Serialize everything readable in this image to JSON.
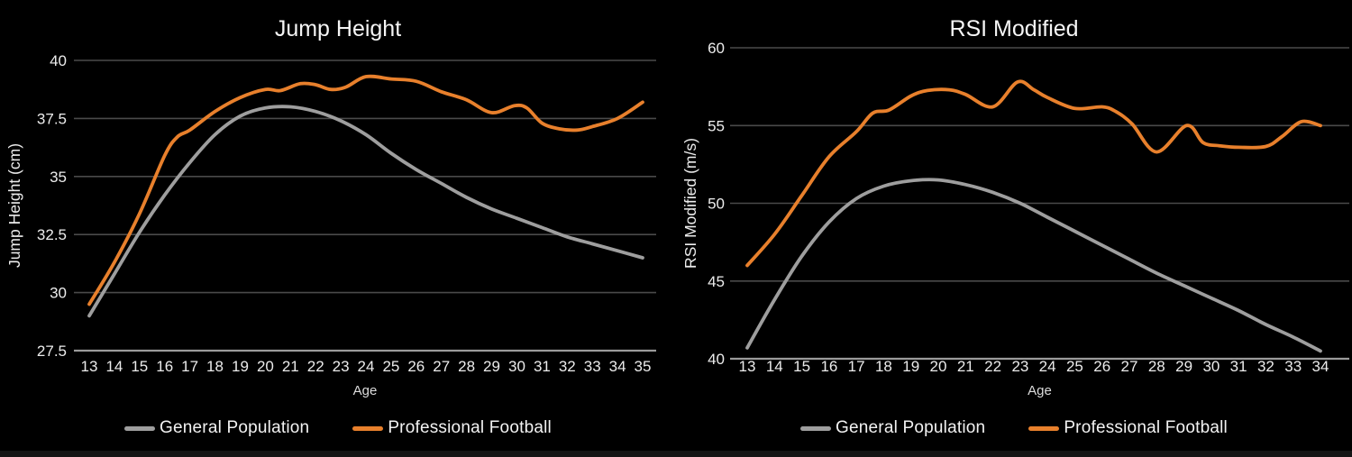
{
  "page": {
    "background": "#000000"
  },
  "colors": {
    "grid": "#4a4a4a",
    "axis_line": "#9a9a9a",
    "title_text": "#f5f5f5",
    "tick_text": "#ececec",
    "axis_label_text": "#dcdcdc",
    "gray_series": "#9e9e9e",
    "orange_series": "#e8802c"
  },
  "chart_data": [
    {
      "type": "line",
      "title": "Jump Height",
      "xlabel": "Age",
      "ylabel": "Jump Height (cm)",
      "x_ticks": [
        13,
        14,
        15,
        16,
        17,
        18,
        19,
        20,
        21,
        22,
        23,
        24,
        25,
        26,
        27,
        28,
        29,
        30,
        31,
        32,
        33,
        34,
        35
      ],
      "y_ticks": [
        27.5,
        30,
        32.5,
        35,
        37.5,
        40
      ],
      "xlim": [
        13,
        35
      ],
      "ylim": [
        27.5,
        40
      ],
      "grid": true,
      "legend_position": "bottom",
      "series": [
        {
          "name": "General Population",
          "color": "#9e9e9e",
          "x": [
            13,
            14,
            15,
            16,
            17,
            18,
            19,
            20,
            21,
            22,
            23,
            24,
            25,
            26,
            27,
            28,
            29,
            30,
            31,
            32,
            33,
            34,
            35
          ],
          "values": [
            29.0,
            30.8,
            32.6,
            34.2,
            35.6,
            36.8,
            37.6,
            37.95,
            38.0,
            37.8,
            37.4,
            36.8,
            36.0,
            35.3,
            34.7,
            34.1,
            33.6,
            33.2,
            32.8,
            32.4,
            32.1,
            31.8,
            31.5
          ]
        },
        {
          "name": "Professional Football",
          "color": "#e8802c",
          "x": [
            13,
            14,
            15,
            16,
            16.5,
            17,
            18,
            19,
            20,
            20.6,
            21.4,
            22,
            22.6,
            23.2,
            24,
            25,
            26,
            27,
            28,
            29,
            29.9,
            30.4,
            31,
            31.7,
            32.4,
            33,
            34,
            35
          ],
          "values": [
            29.5,
            31.3,
            33.4,
            35.9,
            36.7,
            37.0,
            37.8,
            38.4,
            38.75,
            38.7,
            39.0,
            38.95,
            38.75,
            38.85,
            39.3,
            39.2,
            39.1,
            38.65,
            38.3,
            37.75,
            38.05,
            37.95,
            37.3,
            37.05,
            37.0,
            37.15,
            37.5,
            38.2
          ]
        }
      ]
    },
    {
      "type": "line",
      "title": "RSI Modified",
      "xlabel": "Age",
      "ylabel": "RSI Modified (m/s)",
      "x_ticks": [
        13,
        14,
        15,
        16,
        17,
        18,
        19,
        20,
        21,
        22,
        23,
        24,
        25,
        26,
        27,
        28,
        29,
        30,
        31,
        32,
        33,
        34
      ],
      "y_ticks": [
        40,
        45,
        50,
        55,
        60
      ],
      "xlim": [
        13,
        34
      ],
      "ylim": [
        40,
        60
      ],
      "grid": true,
      "legend_position": "bottom",
      "series": [
        {
          "name": "General Population",
          "color": "#9e9e9e",
          "x": [
            13,
            14,
            15,
            16,
            17,
            18,
            19,
            20,
            21,
            22,
            23,
            24,
            25,
            26,
            27,
            28,
            29,
            30,
            31,
            32,
            33,
            34
          ],
          "values": [
            40.7,
            43.8,
            46.6,
            48.8,
            50.3,
            51.1,
            51.45,
            51.5,
            51.2,
            50.7,
            50.0,
            49.1,
            48.2,
            47.3,
            46.4,
            45.5,
            44.7,
            43.9,
            43.1,
            42.2,
            41.4,
            40.5
          ]
        },
        {
          "name": "Professional Football",
          "color": "#e8802c",
          "x": [
            13,
            14,
            15,
            16,
            17,
            17.6,
            18.2,
            19,
            19.6,
            20.4,
            21,
            22,
            22.9,
            23.5,
            24,
            25,
            26,
            26.5,
            27.1,
            28,
            29.1,
            29.7,
            30.3,
            31,
            32,
            32.6,
            33.3,
            34
          ],
          "values": [
            46.0,
            48.0,
            50.5,
            53.0,
            54.6,
            55.8,
            56.0,
            56.9,
            57.25,
            57.3,
            57.0,
            56.2,
            57.8,
            57.3,
            56.8,
            56.1,
            56.2,
            55.9,
            55.1,
            53.3,
            55.0,
            53.9,
            53.7,
            53.6,
            53.65,
            54.3,
            55.25,
            55.0
          ]
        }
      ]
    }
  ]
}
